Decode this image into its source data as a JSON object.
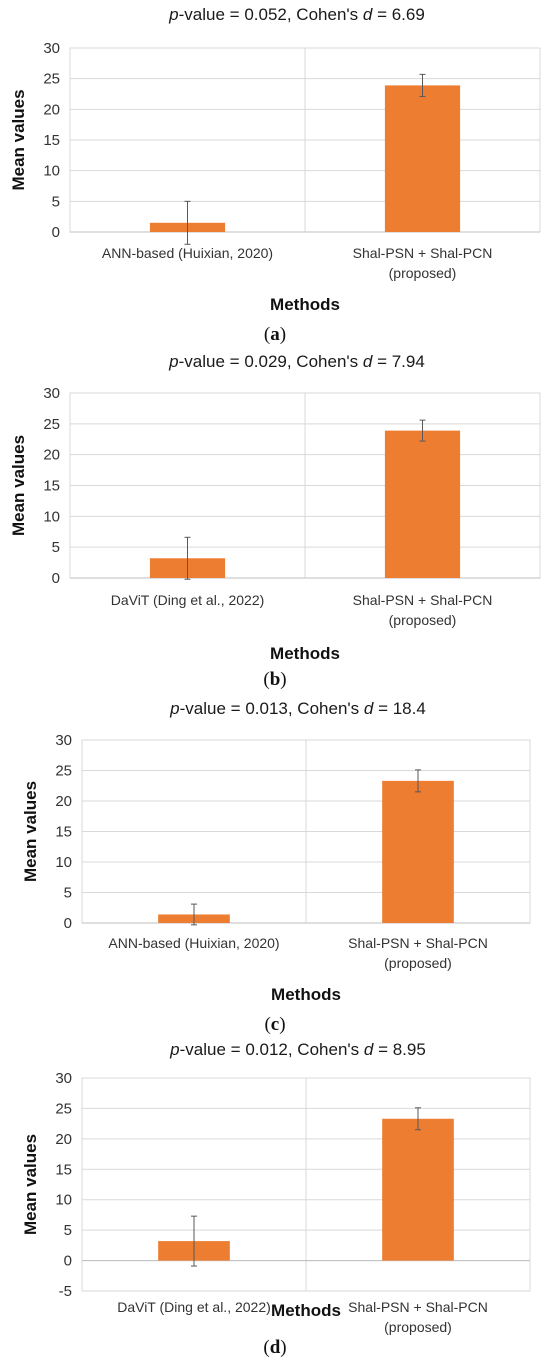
{
  "colors": {
    "bar": "#ED7D31",
    "grid": "#d9d9d9",
    "axis": "#d9d9d9",
    "error": "#595959"
  },
  "chart_data": [
    {
      "type": "bar",
      "panel": "a",
      "title_prefix": "p",
      "title_mid": "-value = 0.052, Cohen's ",
      "title_d": "d",
      "title_suffix": " = 6.69",
      "categories": [
        [
          "ANN-based (Huixian, 2020)"
        ],
        [
          "Shal-PSN + Shal-PCN",
          "(proposed)"
        ]
      ],
      "values": [
        1.5,
        23.9
      ],
      "errors": [
        3.5,
        1.8
      ],
      "xlabel": "Methods",
      "ylabel": "Mean values",
      "ylim": [
        0,
        30
      ],
      "yticks": [
        "0",
        "5",
        "10",
        "15",
        "20",
        "25",
        "30"
      ],
      "grid": true,
      "caption": "a"
    },
    {
      "type": "bar",
      "panel": "b",
      "title_prefix": "p",
      "title_mid": "-value = 0.029, Cohen's ",
      "title_d": "d",
      "title_suffix": " = 7.94",
      "categories": [
        [
          "DaViT (Ding et al., 2022)"
        ],
        [
          "Shal-PSN + Shal-PCN",
          "(proposed)"
        ]
      ],
      "values": [
        3.2,
        23.9
      ],
      "errors": [
        3.4,
        1.7
      ],
      "xlabel": "Methods",
      "ylabel": "Mean values",
      "ylim": [
        0,
        30
      ],
      "yticks": [
        "0",
        "5",
        "10",
        "15",
        "20",
        "25",
        "30"
      ],
      "grid": true,
      "caption": "b"
    },
    {
      "type": "bar",
      "panel": "c",
      "title_prefix": "p",
      "title_mid": "-value = 0.013, Cohen's ",
      "title_d": "d",
      "title_suffix": " = 18.4",
      "categories": [
        [
          "ANN-based (Huixian, 2020)"
        ],
        [
          "Shal-PSN + Shal-PCN",
          "(proposed)"
        ]
      ],
      "values": [
        1.4,
        23.3
      ],
      "errors": [
        1.7,
        1.8
      ],
      "xlabel": "Methods",
      "ylabel": "Mean values",
      "ylim": [
        0,
        30
      ],
      "yticks": [
        "0",
        "5",
        "10",
        "15",
        "20",
        "25",
        "30"
      ],
      "grid": true,
      "caption": "c"
    },
    {
      "type": "bar",
      "panel": "d",
      "title_prefix": "p",
      "title_mid": "-value = 0.012, Cohen's ",
      "title_d": "d",
      "title_suffix": " = 8.95",
      "categories": [
        [
          "DaViT (Ding et al., 2022)"
        ],
        [
          "Shal-PSN + Shal-PCN",
          "(proposed)"
        ]
      ],
      "values": [
        3.2,
        23.3
      ],
      "errors": [
        4.1,
        1.8
      ],
      "xlabel": "Methods",
      "ylabel": "Mean values",
      "ylim": [
        -5,
        30
      ],
      "yticks": [
        "-5",
        "0",
        "5",
        "10",
        "15",
        "20",
        "25",
        "30"
      ],
      "grid": true,
      "caption": "d"
    }
  ]
}
